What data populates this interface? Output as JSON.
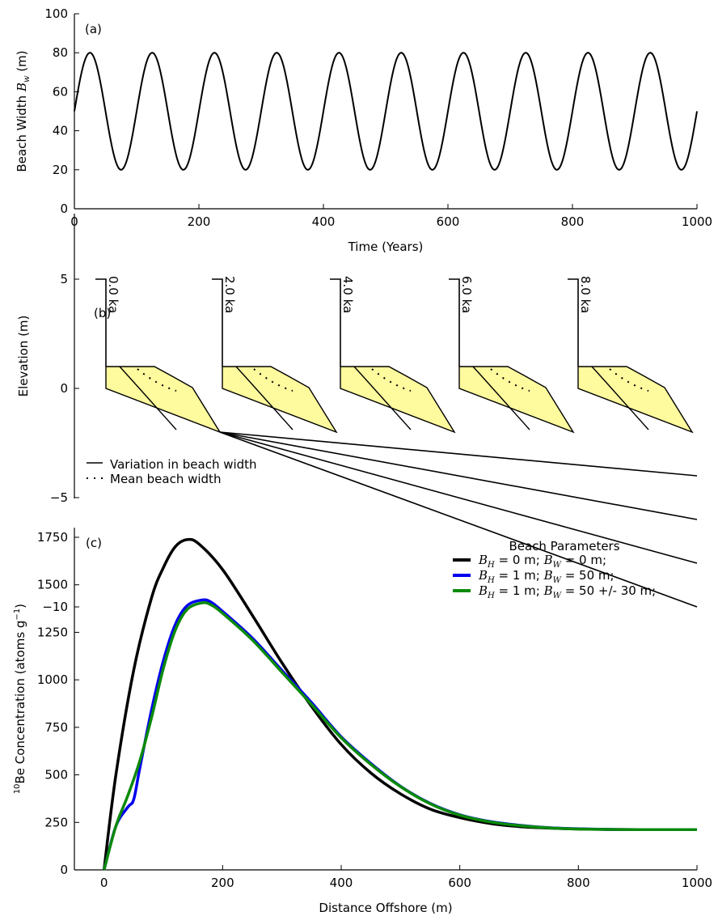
{
  "chart_data": [
    {
      "panel": "(a)",
      "type": "line",
      "xlabel": "Time (Years)",
      "ylabel_parts": {
        "main": "Beach Width",
        "var": "B",
        "sub": "w",
        "unit": "(m)"
      },
      "xlim": [
        0,
        1000
      ],
      "ylim": [
        0,
        100
      ],
      "xticks": [
        0,
        200,
        400,
        600,
        800,
        1000
      ],
      "yticks": [
        0,
        20,
        40,
        60,
        80,
        100
      ],
      "series": [
        {
          "function": "sine",
          "mean": 50,
          "amplitude": 30,
          "period": 100,
          "x": [
            0,
            25,
            75,
            125,
            175,
            225,
            275,
            325,
            375,
            425,
            475,
            525,
            575,
            625,
            675,
            725,
            775,
            825,
            875,
            925,
            975,
            1000
          ],
          "y": [
            50,
            80,
            20,
            80,
            20,
            80,
            20,
            80,
            20,
            80,
            20,
            80,
            20,
            80,
            20,
            80,
            20,
            80,
            20,
            80,
            20,
            50
          ],
          "color": "#000000"
        }
      ]
    },
    {
      "panel": "(b)",
      "type": "diagram",
      "ylabel": "Elevation (m)",
      "ylim": [
        -10,
        8
      ],
      "yticks": [
        5,
        0,
        -5,
        -10
      ],
      "ytick_labels": [
        "5",
        "0",
        "−5",
        "−10"
      ],
      "profiles": [
        {
          "label": "0.0 ka",
          "far_end_elevation": -2
        },
        {
          "label": "2.0 ka",
          "far_end_elevation": -2
        },
        {
          "label": "4.0 ka",
          "far_end_elevation": -4
        },
        {
          "label": "6.0 ka",
          "far_end_elevation": -6
        },
        {
          "label": "8.0 ka",
          "far_end_elevation": -8
        }
      ],
      "bedrock_far_elevations": [
        -4,
        -6,
        -8,
        -10
      ],
      "legend": [
        {
          "label": "Variation in beach width",
          "style": "solid"
        },
        {
          "label": "Mean beach width",
          "style": "dotted"
        }
      ],
      "fill_color": "#fefa9e"
    },
    {
      "panel": "(c)",
      "type": "line",
      "xlabel": "Distance Offshore (m)",
      "ylabel_parts": {
        "sup": "10",
        "main": "Be Concentration (atoms g",
        "exp": "−1",
        "close": ")"
      },
      "xlim": [
        -50,
        1000
      ],
      "ylim": [
        0,
        1800
      ],
      "xticks": [
        0,
        200,
        400,
        600,
        800,
        1000
      ],
      "yticks": [
        0,
        250,
        500,
        750,
        1000,
        1250,
        1500,
        1750
      ],
      "legend_title": "Beach Parameters",
      "series": [
        {
          "name_parts": [
            "B",
            "H",
            " = 0 m; ",
            "B",
            "W",
            " = 0 m;"
          ],
          "color": "#000000",
          "x": [
            0,
            20,
            50,
            80,
            100,
            120,
            140,
            160,
            200,
            250,
            300,
            350,
            400,
            450,
            500,
            550,
            600,
            650,
            700,
            750,
            800,
            850,
            900,
            1000
          ],
          "y": [
            0,
            500,
            1050,
            1430,
            1590,
            1700,
            1738,
            1715,
            1580,
            1340,
            1090,
            860,
            660,
            510,
            400,
            320,
            275,
            245,
            228,
            220,
            215,
            213,
            212,
            212
          ]
        },
        {
          "name_parts": [
            "B",
            "H",
            " = 1 m; ",
            "B",
            "W",
            " = 50 m;"
          ],
          "color": "#0000ee",
          "x": [
            0,
            20,
            40,
            50,
            60,
            80,
            100,
            120,
            140,
            165,
            180,
            200,
            250,
            300,
            350,
            400,
            450,
            500,
            550,
            600,
            650,
            700,
            750,
            800,
            850,
            900,
            1000
          ],
          "y": [
            0,
            230,
            330,
            370,
            530,
            840,
            1100,
            1290,
            1390,
            1420,
            1410,
            1360,
            1220,
            1050,
            880,
            700,
            560,
            440,
            350,
            290,
            255,
            235,
            222,
            216,
            213,
            212,
            212
          ]
        },
        {
          "name_parts": [
            "B",
            "H",
            " = 1 m; ",
            "B",
            "W",
            " = 50 +/- 30 m;"
          ],
          "color": "#0a8a0a",
          "x": [
            0,
            20,
            40,
            60,
            80,
            100,
            120,
            140,
            165,
            180,
            200,
            250,
            300,
            350,
            400,
            450,
            500,
            550,
            600,
            650,
            700,
            750,
            800,
            850,
            900,
            1000
          ],
          "y": [
            0,
            230,
            390,
            570,
            800,
            1060,
            1260,
            1370,
            1405,
            1395,
            1350,
            1210,
            1040,
            870,
            695,
            555,
            438,
            348,
            288,
            253,
            233,
            221,
            215,
            213,
            212,
            212
          ]
        }
      ]
    }
  ]
}
